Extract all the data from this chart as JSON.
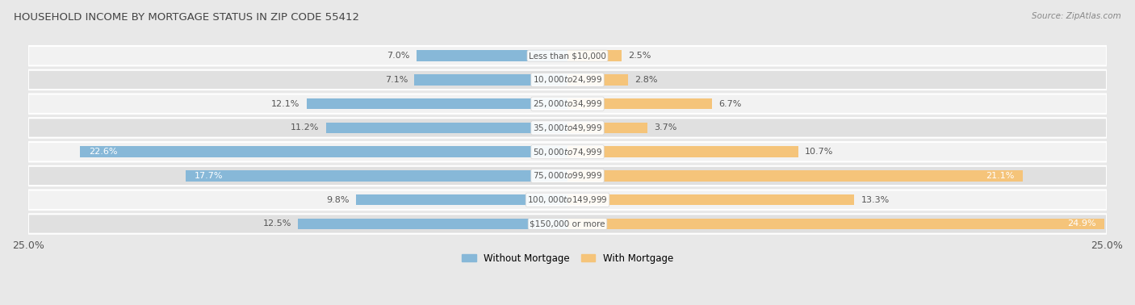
{
  "title": "HOUSEHOLD INCOME BY MORTGAGE STATUS IN ZIP CODE 55412",
  "source": "Source: ZipAtlas.com",
  "categories": [
    "Less than $10,000",
    "$10,000 to $24,999",
    "$25,000 to $34,999",
    "$35,000 to $49,999",
    "$50,000 to $74,999",
    "$75,000 to $99,999",
    "$100,000 to $149,999",
    "$150,000 or more"
  ],
  "without_mortgage": [
    7.0,
    7.1,
    12.1,
    11.2,
    22.6,
    17.7,
    9.8,
    12.5
  ],
  "with_mortgage": [
    2.5,
    2.8,
    6.7,
    3.7,
    10.7,
    21.1,
    13.3,
    24.9
  ],
  "blue_color": "#87b8d8",
  "orange_color": "#f5c47a",
  "bg_color": "#e8e8e8",
  "row_bg_odd": "#f2f2f2",
  "row_bg_even": "#e0e0e0",
  "title_color": "#444444",
  "label_color": "#555555",
  "axis_max": 25.0,
  "legend_label_blue": "Without Mortgage",
  "legend_label_orange": "With Mortgage"
}
